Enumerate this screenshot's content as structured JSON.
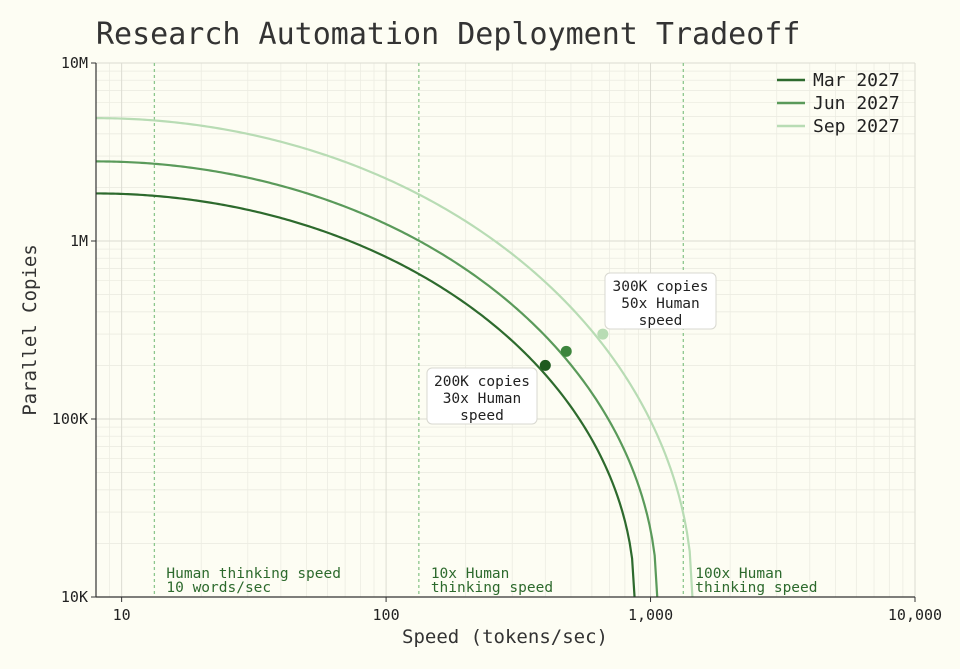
{
  "chart_data": {
    "type": "line",
    "title": "Research Automation Deployment Tradeoff",
    "xlabel": "Speed (tokens/sec)",
    "ylabel": "Parallel Copies",
    "x_scale": "log",
    "y_scale": "log",
    "xlim": [
      8,
      10000
    ],
    "ylim": [
      10000,
      10000000
    ],
    "x_ticks": [
      {
        "value": 10,
        "label": "10"
      },
      {
        "value": 100,
        "label": "100"
      },
      {
        "value": 1000,
        "label": "1,000"
      },
      {
        "value": 10000,
        "label": "10,000"
      }
    ],
    "y_ticks": [
      {
        "value": 10000,
        "label": "10K"
      },
      {
        "value": 100000,
        "label": "100K"
      },
      {
        "value": 1000000,
        "label": "1M"
      },
      {
        "value": 10000000,
        "label": "10M"
      }
    ],
    "grid": true,
    "legend_position": "top-right",
    "series": [
      {
        "name": "Mar 2027",
        "color": "#2d6a2d",
        "max_copies": 1850000,
        "max_speed": 870,
        "marker": {
          "x": 400,
          "y": 200000,
          "color": "#1e5a1e"
        }
      },
      {
        "name": "Jun 2027",
        "color": "#5a9a5a",
        "max_copies": 2800000,
        "max_speed": 1060,
        "marker": {
          "x": 480,
          "y": 240000,
          "color": "#3d853d"
        }
      },
      {
        "name": "Sep 2027",
        "color": "#b8dcb4",
        "max_copies": 4900000,
        "max_speed": 1440,
        "marker": {
          "x": 660,
          "y": 300000,
          "color": "#b8dcb4"
        }
      }
    ],
    "reference_lines": [
      {
        "x": 13.3,
        "color": "#8cc68c",
        "label_lines": [
          "Human thinking speed",
          "10 words/sec"
        ]
      },
      {
        "x": 133,
        "color": "#8cc68c",
        "label_lines": [
          "10x Human",
          "thinking speed"
        ]
      },
      {
        "x": 1330,
        "color": "#8cc68c",
        "label_lines": [
          "100x Human",
          "thinking speed"
        ]
      }
    ],
    "annotations": [
      {
        "lines": [
          "200K copies",
          "30x Human",
          "speed"
        ]
      },
      {
        "lines": [
          "300K copies",
          "50x Human",
          "speed"
        ]
      }
    ]
  }
}
